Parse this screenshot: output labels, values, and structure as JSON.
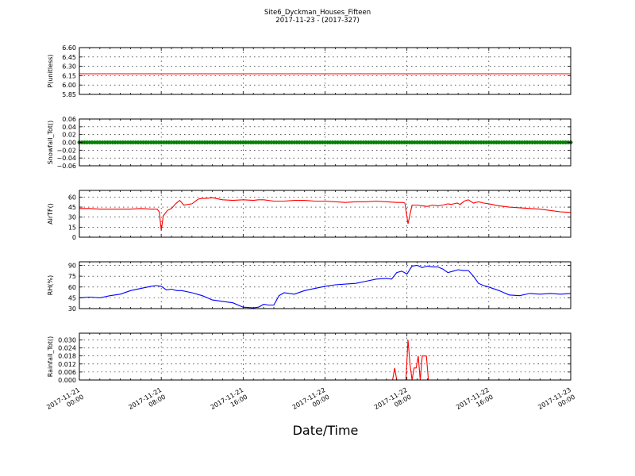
{
  "title": "Site6_Dyckman_Houses_Fifteen",
  "subtitle": "2017-11-23 - (2017-327)",
  "xlabel": "Date/Time",
  "x_ticks": [
    [
      "2017-11-21",
      "00:00"
    ],
    [
      "2017-11-21",
      "08:00"
    ],
    [
      "2017-11-21",
      "16:00"
    ],
    [
      "2017-11-22",
      "00:00"
    ],
    [
      "2017-11-22",
      "08:00"
    ],
    [
      "2017-11-22",
      "16:00"
    ],
    [
      "2017-11-23",
      "00:00"
    ]
  ],
  "chart_data": [
    {
      "type": "line",
      "ylabel": "P(unitless)",
      "ylim": [
        5.85,
        6.6
      ],
      "yticks": [
        "5.85",
        "6.00",
        "6.15",
        "6.30",
        "6.45",
        "6.60"
      ],
      "grid": true,
      "color": "#ff0000",
      "series": [
        {
          "x": [
            0,
            48
          ],
          "values": [
            6.18,
            6.18
          ]
        }
      ]
    },
    {
      "type": "scatter",
      "ylabel": "Snowfall_Tot()",
      "ylim": [
        -0.06,
        0.06
      ],
      "yticks": [
        "−0.06",
        "−0.04",
        "−0.02",
        "0.00",
        "0.02",
        "0.04",
        "0.06"
      ],
      "grid": true,
      "color": "#008000",
      "series": [
        {
          "x": [
            0,
            48
          ],
          "values": [
            0,
            0
          ]
        }
      ]
    },
    {
      "type": "line",
      "ylabel": "AirTF()",
      "ylim": [
        0,
        70
      ],
      "yticks": [
        "0",
        "15",
        "30",
        "45",
        "60"
      ],
      "grid": true,
      "color": "#ff0000",
      "series": [
        {
          "x": [
            0,
            1,
            2,
            3,
            4,
            5,
            6,
            7,
            7.6,
            7.8,
            8.0,
            8.2,
            8.6,
            9.0,
            9.4,
            9.8,
            10.2,
            11,
            11.6,
            12,
            12.4,
            13,
            14,
            15,
            16,
            17,
            17.5,
            18,
            19,
            20,
            21,
            22,
            23,
            24,
            25,
            26,
            27,
            28,
            29,
            30,
            31,
            31.6,
            31.8,
            32.1,
            32.5,
            33,
            33.5,
            34,
            34.5,
            35,
            35.5,
            36,
            36.3,
            36.6,
            36.9,
            37.2,
            37.6,
            38,
            38.5,
            39,
            39.5,
            40,
            41,
            42,
            43,
            44,
            45,
            46,
            47,
            48
          ],
          "values": [
            43,
            43,
            42,
            42,
            42,
            42,
            43,
            42,
            42,
            38,
            10,
            32,
            40,
            43,
            50,
            55,
            48,
            50,
            57,
            58,
            58,
            59,
            56,
            55,
            56,
            55,
            56,
            56,
            54,
            54,
            55,
            55,
            54,
            54,
            53,
            52,
            53,
            53,
            54,
            53,
            52,
            52,
            51,
            20,
            48,
            48,
            47,
            46,
            48,
            47,
            48,
            50,
            49,
            50,
            51,
            49,
            54,
            56,
            51,
            53,
            51,
            50,
            47,
            45,
            44,
            43,
            42,
            40,
            38,
            37
          ]
        }
      ]
    },
    {
      "type": "line",
      "ylabel": "RH(%)",
      "ylim": [
        30,
        95
      ],
      "yticks": [
        "30",
        "45",
        "60",
        "75",
        "90"
      ],
      "grid": true,
      "color": "#0000ff",
      "series": [
        {
          "x": [
            0,
            1,
            2,
            3,
            4,
            5,
            6,
            7,
            7.5,
            8,
            8.5,
            9,
            9.5,
            10,
            11,
            12,
            13,
            14,
            15,
            16,
            17,
            17.5,
            18,
            18.5,
            19,
            19.5,
            20,
            21,
            22,
            23,
            24,
            25,
            26,
            27,
            28,
            29,
            30,
            30.5,
            31,
            31.5,
            32,
            32.5,
            33,
            33.5,
            34,
            34.5,
            35,
            35.5,
            36,
            36.5,
            37,
            37.5,
            38,
            38.5,
            39,
            39.5,
            40,
            41,
            42,
            43,
            44,
            45,
            46,
            47,
            48
          ],
          "values": [
            45,
            46,
            45,
            48,
            50,
            55,
            58,
            61,
            62,
            61,
            56,
            57,
            55,
            55,
            52,
            48,
            42,
            40,
            38,
            32,
            31,
            32,
            36,
            35,
            35,
            48,
            52,
            50,
            55,
            58,
            61,
            63,
            64,
            65,
            68,
            71,
            72,
            71,
            80,
            82,
            78,
            89,
            90,
            87,
            89,
            88,
            88,
            85,
            80,
            82,
            84,
            83,
            83,
            75,
            65,
            62,
            60,
            55,
            49,
            48,
            51,
            50,
            51,
            50,
            51
          ]
        }
      ]
    },
    {
      "type": "line",
      "ylabel": "Rainfall_Tot()",
      "ylim": [
        0,
        0.035
      ],
      "yticks": [
        "0.000",
        "0.006",
        "0.012",
        "0.018",
        "0.024",
        "0.030"
      ],
      "grid": true,
      "color": "#ff0000",
      "series": [
        {
          "x": [
            0,
            30.6,
            30.8,
            31.0,
            31.9,
            32.1,
            32.3,
            32.5,
            32.7,
            32.9,
            33.1,
            33.3,
            33.5,
            33.7,
            33.9,
            34.1,
            34.3,
            48
          ],
          "values": [
            0,
            0,
            0.009,
            0,
            0,
            0.03,
            0.012,
            0,
            0.009,
            0.009,
            0.018,
            0,
            0.018,
            0.018,
            0.018,
            0,
            0,
            0
          ]
        }
      ]
    }
  ]
}
